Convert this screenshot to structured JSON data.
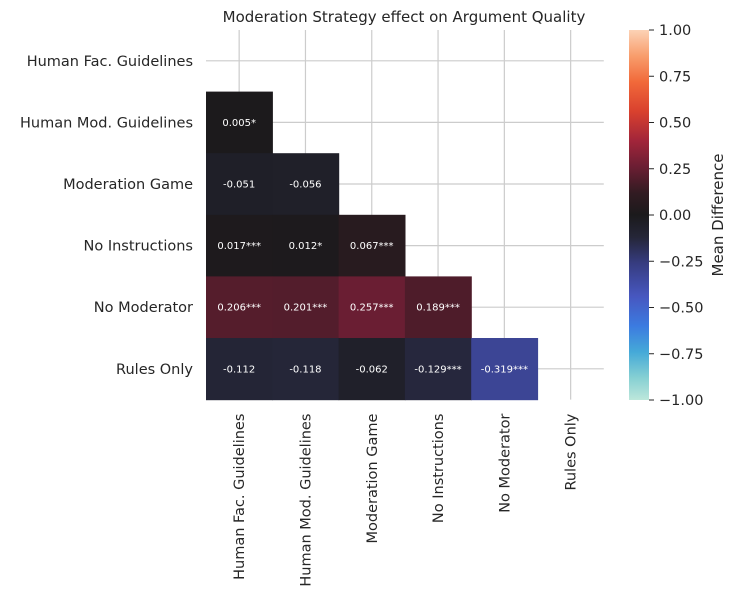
{
  "chart_data": {
    "type": "heatmap",
    "title": "Moderation Strategy effect on Argument Quality",
    "rows": [
      "Human Fac. Guidelines",
      "Human Mod. Guidelines",
      "Moderation Game",
      "No Instructions",
      "No Moderator",
      "Rules Only"
    ],
    "columns": [
      "Human Fac. Guidelines",
      "Human Mod. Guidelines",
      "Moderation Game",
      "No Instructions",
      "No Moderator",
      "Rules Only"
    ],
    "mask": "upper-triangle-including-diagonal",
    "cells": [
      {
        "row": 1,
        "col": 0,
        "value": 0.005,
        "label": "0.005*"
      },
      {
        "row": 2,
        "col": 0,
        "value": -0.051,
        "label": "-0.051"
      },
      {
        "row": 2,
        "col": 1,
        "value": -0.056,
        "label": "-0.056"
      },
      {
        "row": 3,
        "col": 0,
        "value": 0.017,
        "label": "0.017***"
      },
      {
        "row": 3,
        "col": 1,
        "value": 0.012,
        "label": "0.012*"
      },
      {
        "row": 3,
        "col": 2,
        "value": 0.067,
        "label": "0.067***"
      },
      {
        "row": 4,
        "col": 0,
        "value": 0.206,
        "label": "0.206***"
      },
      {
        "row": 4,
        "col": 1,
        "value": 0.201,
        "label": "0.201***"
      },
      {
        "row": 4,
        "col": 2,
        "value": 0.257,
        "label": "0.257***"
      },
      {
        "row": 4,
        "col": 3,
        "value": 0.189,
        "label": "0.189***"
      },
      {
        "row": 5,
        "col": 0,
        "value": -0.112,
        "label": "-0.112"
      },
      {
        "row": 5,
        "col": 1,
        "value": -0.118,
        "label": "-0.118"
      },
      {
        "row": 5,
        "col": 2,
        "value": -0.062,
        "label": "-0.062"
      },
      {
        "row": 5,
        "col": 3,
        "value": -0.129,
        "label": "-0.129***"
      },
      {
        "row": 5,
        "col": 4,
        "value": -0.319,
        "label": "-0.319***"
      }
    ],
    "colorbar": {
      "label": "Mean Difference",
      "range": [
        -1.0,
        1.0
      ],
      "ticks": [
        "1.00",
        "0.75",
        "0.50",
        "0.25",
        "0.00",
        "−0.25",
        "−0.50",
        "−0.75",
        "−1.00"
      ],
      "tick_values": [
        1.0,
        0.75,
        0.5,
        0.25,
        0.0,
        -0.25,
        -0.5,
        -0.75,
        -1.0
      ],
      "colormap": "icefire"
    },
    "grid": true
  }
}
